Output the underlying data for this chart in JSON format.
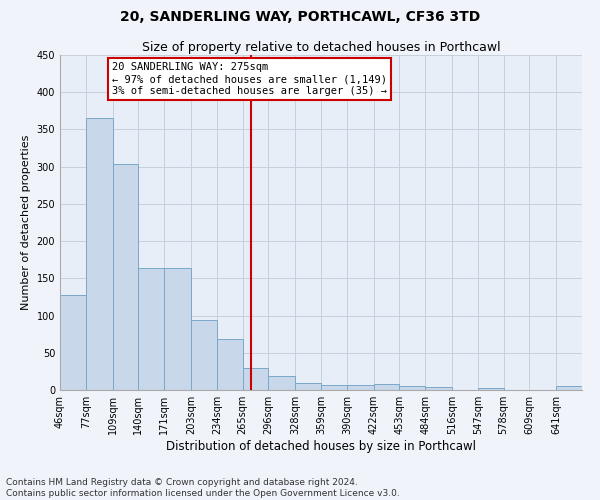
{
  "title": "20, SANDERLING WAY, PORTHCAWL, CF36 3TD",
  "subtitle": "Size of property relative to detached houses in Porthcawl",
  "xlabel": "Distribution of detached houses by size in Porthcawl",
  "ylabel": "Number of detached properties",
  "bar_color": "#c8d8ea",
  "bar_edge_color": "#7aa8c8",
  "grid_color": "#c8d0dc",
  "background_color": "#e8eef8",
  "fig_background": "#f0f4fa",
  "vline_x": 275,
  "vline_color": "#cc0000",
  "annotation_text": "20 SANDERLING WAY: 275sqm\n← 97% of detached houses are smaller (1,149)\n3% of semi-detached houses are larger (35) →",
  "annotation_box_color": "#ffffff",
  "annotation_box_edge": "#cc0000",
  "bins": [
    46,
    77,
    109,
    140,
    171,
    203,
    234,
    265,
    296,
    328,
    359,
    390,
    422,
    453,
    484,
    516,
    547,
    578,
    609,
    641,
    672
  ],
  "bar_heights": [
    128,
    365,
    304,
    164,
    164,
    94,
    68,
    30,
    19,
    10,
    7,
    7,
    8,
    5,
    4,
    0,
    3,
    0,
    0,
    5
  ],
  "ylim": [
    0,
    450
  ],
  "yticks": [
    0,
    50,
    100,
    150,
    200,
    250,
    300,
    350,
    400,
    450
  ],
  "footnote": "Contains HM Land Registry data © Crown copyright and database right 2024.\nContains public sector information licensed under the Open Government Licence v3.0.",
  "title_fontsize": 10,
  "subtitle_fontsize": 9,
  "xlabel_fontsize": 8.5,
  "ylabel_fontsize": 8,
  "tick_fontsize": 7,
  "footnote_fontsize": 6.5,
  "annot_fontsize": 7.5
}
